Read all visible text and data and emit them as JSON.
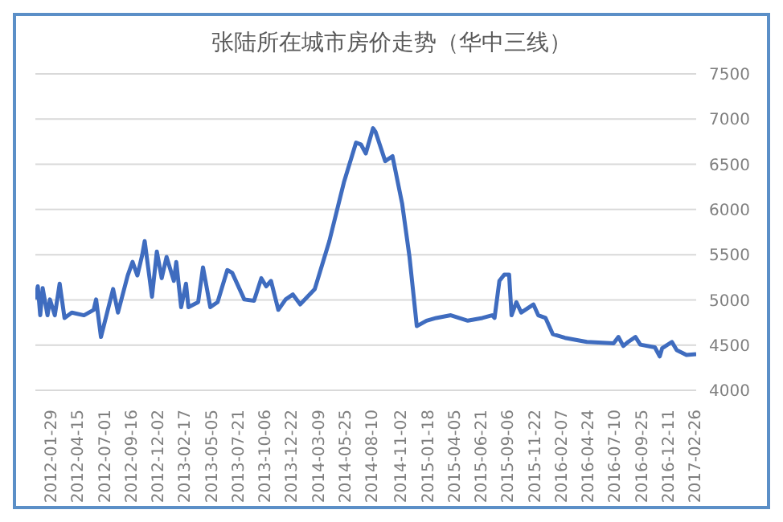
{
  "chart_data": {
    "type": "line",
    "title": "张陆所在城市房价走势（华中三线）",
    "x": [
      "2011-12-11",
      "2011-12-18",
      "2011-12-25",
      "2012-01-01",
      "2012-01-15",
      "2012-01-22",
      "2012-02-05",
      "2012-02-19",
      "2012-03-04",
      "2012-03-25",
      "2012-04-29",
      "2012-05-27",
      "2012-06-03",
      "2012-06-17",
      "2012-07-22",
      "2012-08-05",
      "2012-09-02",
      "2012-09-16",
      "2012-09-30",
      "2012-10-14",
      "2012-10-21",
      "2012-11-11",
      "2012-11-25",
      "2012-12-09",
      "2012-12-23",
      "2013-01-13",
      "2013-01-20",
      "2013-02-03",
      "2013-02-17",
      "2013-02-24",
      "2013-03-24",
      "2013-04-07",
      "2013-04-28",
      "2013-05-19",
      "2013-06-16",
      "2013-06-30",
      "2013-08-04",
      "2013-09-01",
      "2013-09-22",
      "2013-10-06",
      "2013-10-20",
      "2013-11-10",
      "2013-12-01",
      "2013-12-22",
      "2014-01-12",
      "2014-02-23",
      "2014-04-06",
      "2014-05-18",
      "2014-06-22",
      "2014-07-06",
      "2014-07-20",
      "2014-08-10",
      "2014-08-17",
      "2014-09-14",
      "2014-10-05",
      "2014-11-02",
      "2014-11-23",
      "2014-12-14",
      "2015-01-11",
      "2015-02-08",
      "2015-03-22",
      "2015-05-10",
      "2015-06-21",
      "2015-07-19",
      "2015-07-26",
      "2015-08-09",
      "2015-08-23",
      "2015-09-06",
      "2015-09-13",
      "2015-09-27",
      "2015-10-11",
      "2015-11-15",
      "2015-11-29",
      "2015-12-20",
      "2016-01-10",
      "2016-02-14",
      "2016-04-17",
      "2016-07-03",
      "2016-07-17",
      "2016-07-31",
      "2016-08-14",
      "2016-09-04",
      "2016-09-18",
      "2016-10-30",
      "2016-11-13",
      "2016-11-20",
      "2016-12-18",
      "2017-01-01",
      "2017-01-29",
      "2017-02-26"
    ],
    "series": [
      {
        "color": "#3f6cbf",
        "values": [
          5005,
          5150,
          4830,
          5130,
          4830,
          5005,
          4830,
          5180,
          4800,
          4860,
          4830,
          4890,
          5005,
          4590,
          5120,
          4860,
          5270,
          5420,
          5270,
          5500,
          5650,
          5035,
          5535,
          5240,
          5475,
          5210,
          5420,
          4920,
          5180,
          4920,
          4975,
          5360,
          4920,
          4975,
          5330,
          5300,
          5005,
          4990,
          5240,
          5150,
          5210,
          4890,
          5005,
          5060,
          4950,
          5120,
          5650,
          6300,
          6740,
          6720,
          6620,
          6900,
          6860,
          6535,
          6590,
          6060,
          5475,
          4710,
          4770,
          4800,
          4830,
          4770,
          4800,
          4830,
          4800,
          5210,
          5280,
          5280,
          4830,
          4975,
          4860,
          4950,
          4830,
          4800,
          4620,
          4580,
          4535,
          4520,
          4590,
          4490,
          4535,
          4590,
          4505,
          4475,
          4375,
          4465,
          4535,
          4445,
          4390,
          4400
        ]
      }
    ],
    "xlim": [
      "2011-12-11",
      "2017-02-26"
    ],
    "xticks": [
      "2012-01-29",
      "2012-04-15",
      "2012-07-01",
      "2012-09-16",
      "2012-12-02",
      "2013-02-17",
      "2013-05-05",
      "2013-07-21",
      "2013-10-06",
      "2013-12-22",
      "2014-03-09",
      "2014-05-25",
      "2014-08-10",
      "2014-11-02",
      "2015-01-18",
      "2015-04-05",
      "2015-06-21",
      "2015-09-06",
      "2015-11-22",
      "2016-02-07",
      "2016-04-24",
      "2016-07-10",
      "2016-09-25",
      "2016-12-11",
      "2017-02-26"
    ],
    "ylim": [
      4000,
      7500
    ],
    "yticks": [
      4000,
      4500,
      5000,
      5500,
      6000,
      6500,
      7000,
      7500
    ],
    "grid": "y",
    "legend": false,
    "marker": "none",
    "line_style": "solid"
  }
}
